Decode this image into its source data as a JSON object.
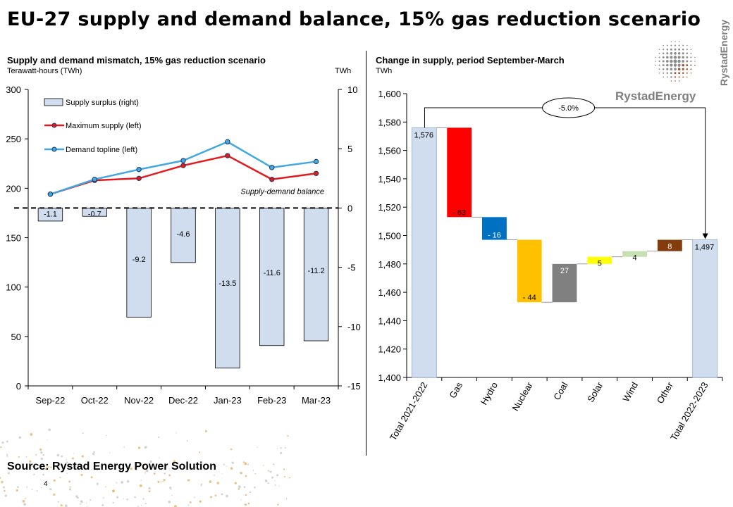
{
  "header": {
    "title": "EU-27 supply and demand balance, 15% gas reduction scenario"
  },
  "brand": {
    "name": "Rystad Energy",
    "logo_text": "RystadEnergy",
    "side_text": "RystadEnergy",
    "accent": "#a0522d"
  },
  "footer": {
    "source": "Source:  Rystad Energy Power Solution",
    "page": "4"
  },
  "chart_data": [
    {
      "type": "bar+line",
      "title": "Supply and demand mismatch, 15% gas reduction scenario",
      "ylabel": "Terawatt-hours (TWh)",
      "y2label": "TWh",
      "categories": [
        "Sep-22",
        "Oct-22",
        "Nov-22",
        "Dec-22",
        "Jan-23",
        "Feb-23",
        "Mar-23"
      ],
      "ylim": [
        0,
        300
      ],
      "y2lim": [
        -15,
        10
      ],
      "yticks": [
        "0",
        "50",
        "100",
        "150",
        "200",
        "250",
        "300"
      ],
      "y2ticks": [
        "-15",
        "-10",
        "-5",
        "0",
        "5",
        "10"
      ],
      "series": [
        {
          "name": "Supply surplus (right)",
          "type": "bar",
          "axis": "right",
          "color": "#d0ddef",
          "values": [
            -1.1,
            -0.7,
            -9.2,
            -4.6,
            -13.5,
            -11.6,
            -11.2
          ],
          "labels": [
            "-1.1",
            "-0.7",
            "-9.2",
            "-4.6",
            "-13.5",
            "-11.6",
            "-11.2"
          ]
        },
        {
          "name": "Maximum supply (left)",
          "type": "line",
          "axis": "left",
          "color": "#e31a1c",
          "values": [
            194,
            208,
            210,
            223,
            233,
            209,
            215
          ]
        },
        {
          "name": "Demand topline (left)",
          "type": "line",
          "axis": "left",
          "color": "#41a8e0",
          "values": [
            194,
            209,
            219,
            228,
            247,
            221,
            227
          ]
        }
      ],
      "annotation": "Supply-demand balance",
      "grid": false,
      "legend_position": "top-left"
    },
    {
      "type": "waterfall",
      "title": "Change in supply, period September-March",
      "ylabel": "TWh",
      "ylim": [
        1400,
        1600
      ],
      "yticks": [
        "1,400",
        "1,420",
        "1,440",
        "1,460",
        "1,480",
        "1,500",
        "1,520",
        "1,540",
        "1,560",
        "1,580",
        "1,600"
      ],
      "categories": [
        "Total 2021-2022",
        "Gas",
        "Hydro",
        "Nuclear",
        "Coal",
        "Solar",
        "Wind",
        "Other",
        "Total 2022-2023"
      ],
      "values": [
        1576,
        -63,
        -16,
        -44,
        27,
        5,
        4,
        8,
        1497
      ],
      "kinds": [
        "total",
        "delta",
        "delta",
        "delta",
        "delta",
        "delta",
        "delta",
        "delta",
        "total"
      ],
      "labels": [
        "1,576",
        "- 63",
        "- 16",
        "- 44",
        "27",
        "5",
        "4",
        "8",
        "1,497"
      ],
      "colors": [
        "#d0ddef",
        "#ff0000",
        "#0070c0",
        "#ffc000",
        "#808080",
        "#ffff00",
        "#c6e0b4",
        "#843c0c",
        "#d0ddef"
      ],
      "change_label": "-5.0%",
      "grid": false
    }
  ]
}
